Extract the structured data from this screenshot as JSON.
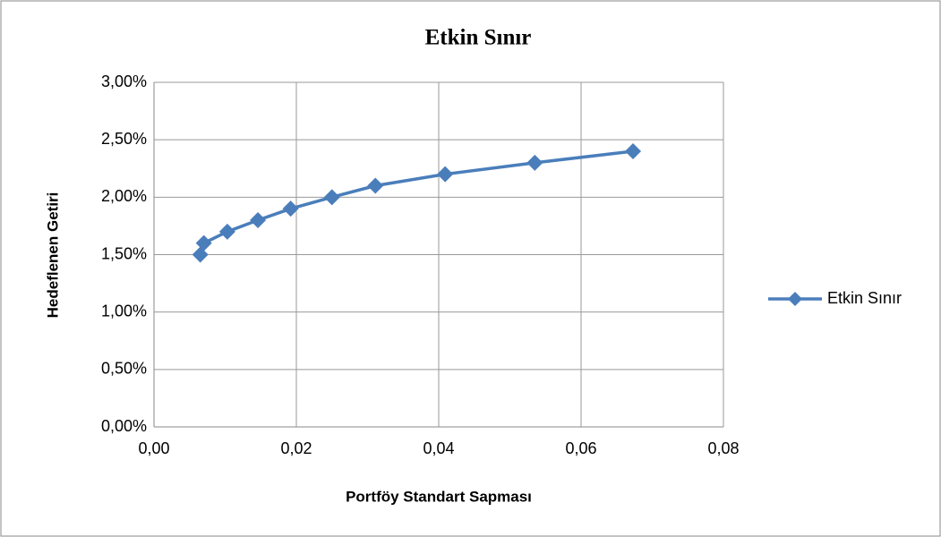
{
  "chart_data": {
    "type": "line",
    "title": "Etkin Sınır",
    "x_label": "Portföy  Standart Sapması",
    "y_label": "Hedeflenen Getiri",
    "x": [
      0.0065,
      0.007,
      0.0103,
      0.0146,
      0.0192,
      0.025,
      0.0311,
      0.0409,
      0.0535,
      0.0673
    ],
    "series": [
      {
        "name": "Etkin Sınır",
        "color": "#4a7ebb",
        "values": [
          1.5,
          1.6,
          1.7,
          1.8,
          1.9,
          2.0,
          2.1,
          2.2,
          2.3,
          2.4
        ]
      }
    ],
    "xlim": [
      0,
      0.08
    ],
    "xticks": [
      {
        "value": 0,
        "label": "0,00"
      },
      {
        "value": 0.02,
        "label": "0,02"
      },
      {
        "value": 0.04,
        "label": "0,04"
      },
      {
        "value": 0.06,
        "label": "0,06"
      },
      {
        "value": 0.08,
        "label": "0,08"
      }
    ],
    "ylim": [
      0,
      3
    ],
    "yticks": [
      {
        "value": 0,
        "label": "0,00%"
      },
      {
        "value": 0.5,
        "label": "0,50%"
      },
      {
        "value": 1,
        "label": "1,00%"
      },
      {
        "value": 1.5,
        "label": "1,50%"
      },
      {
        "value": 2,
        "label": "2,00%"
      },
      {
        "value": 2.5,
        "label": "2,50%"
      },
      {
        "value": 3,
        "label": "3,00%"
      }
    ],
    "grid": true,
    "legend": "right"
  }
}
